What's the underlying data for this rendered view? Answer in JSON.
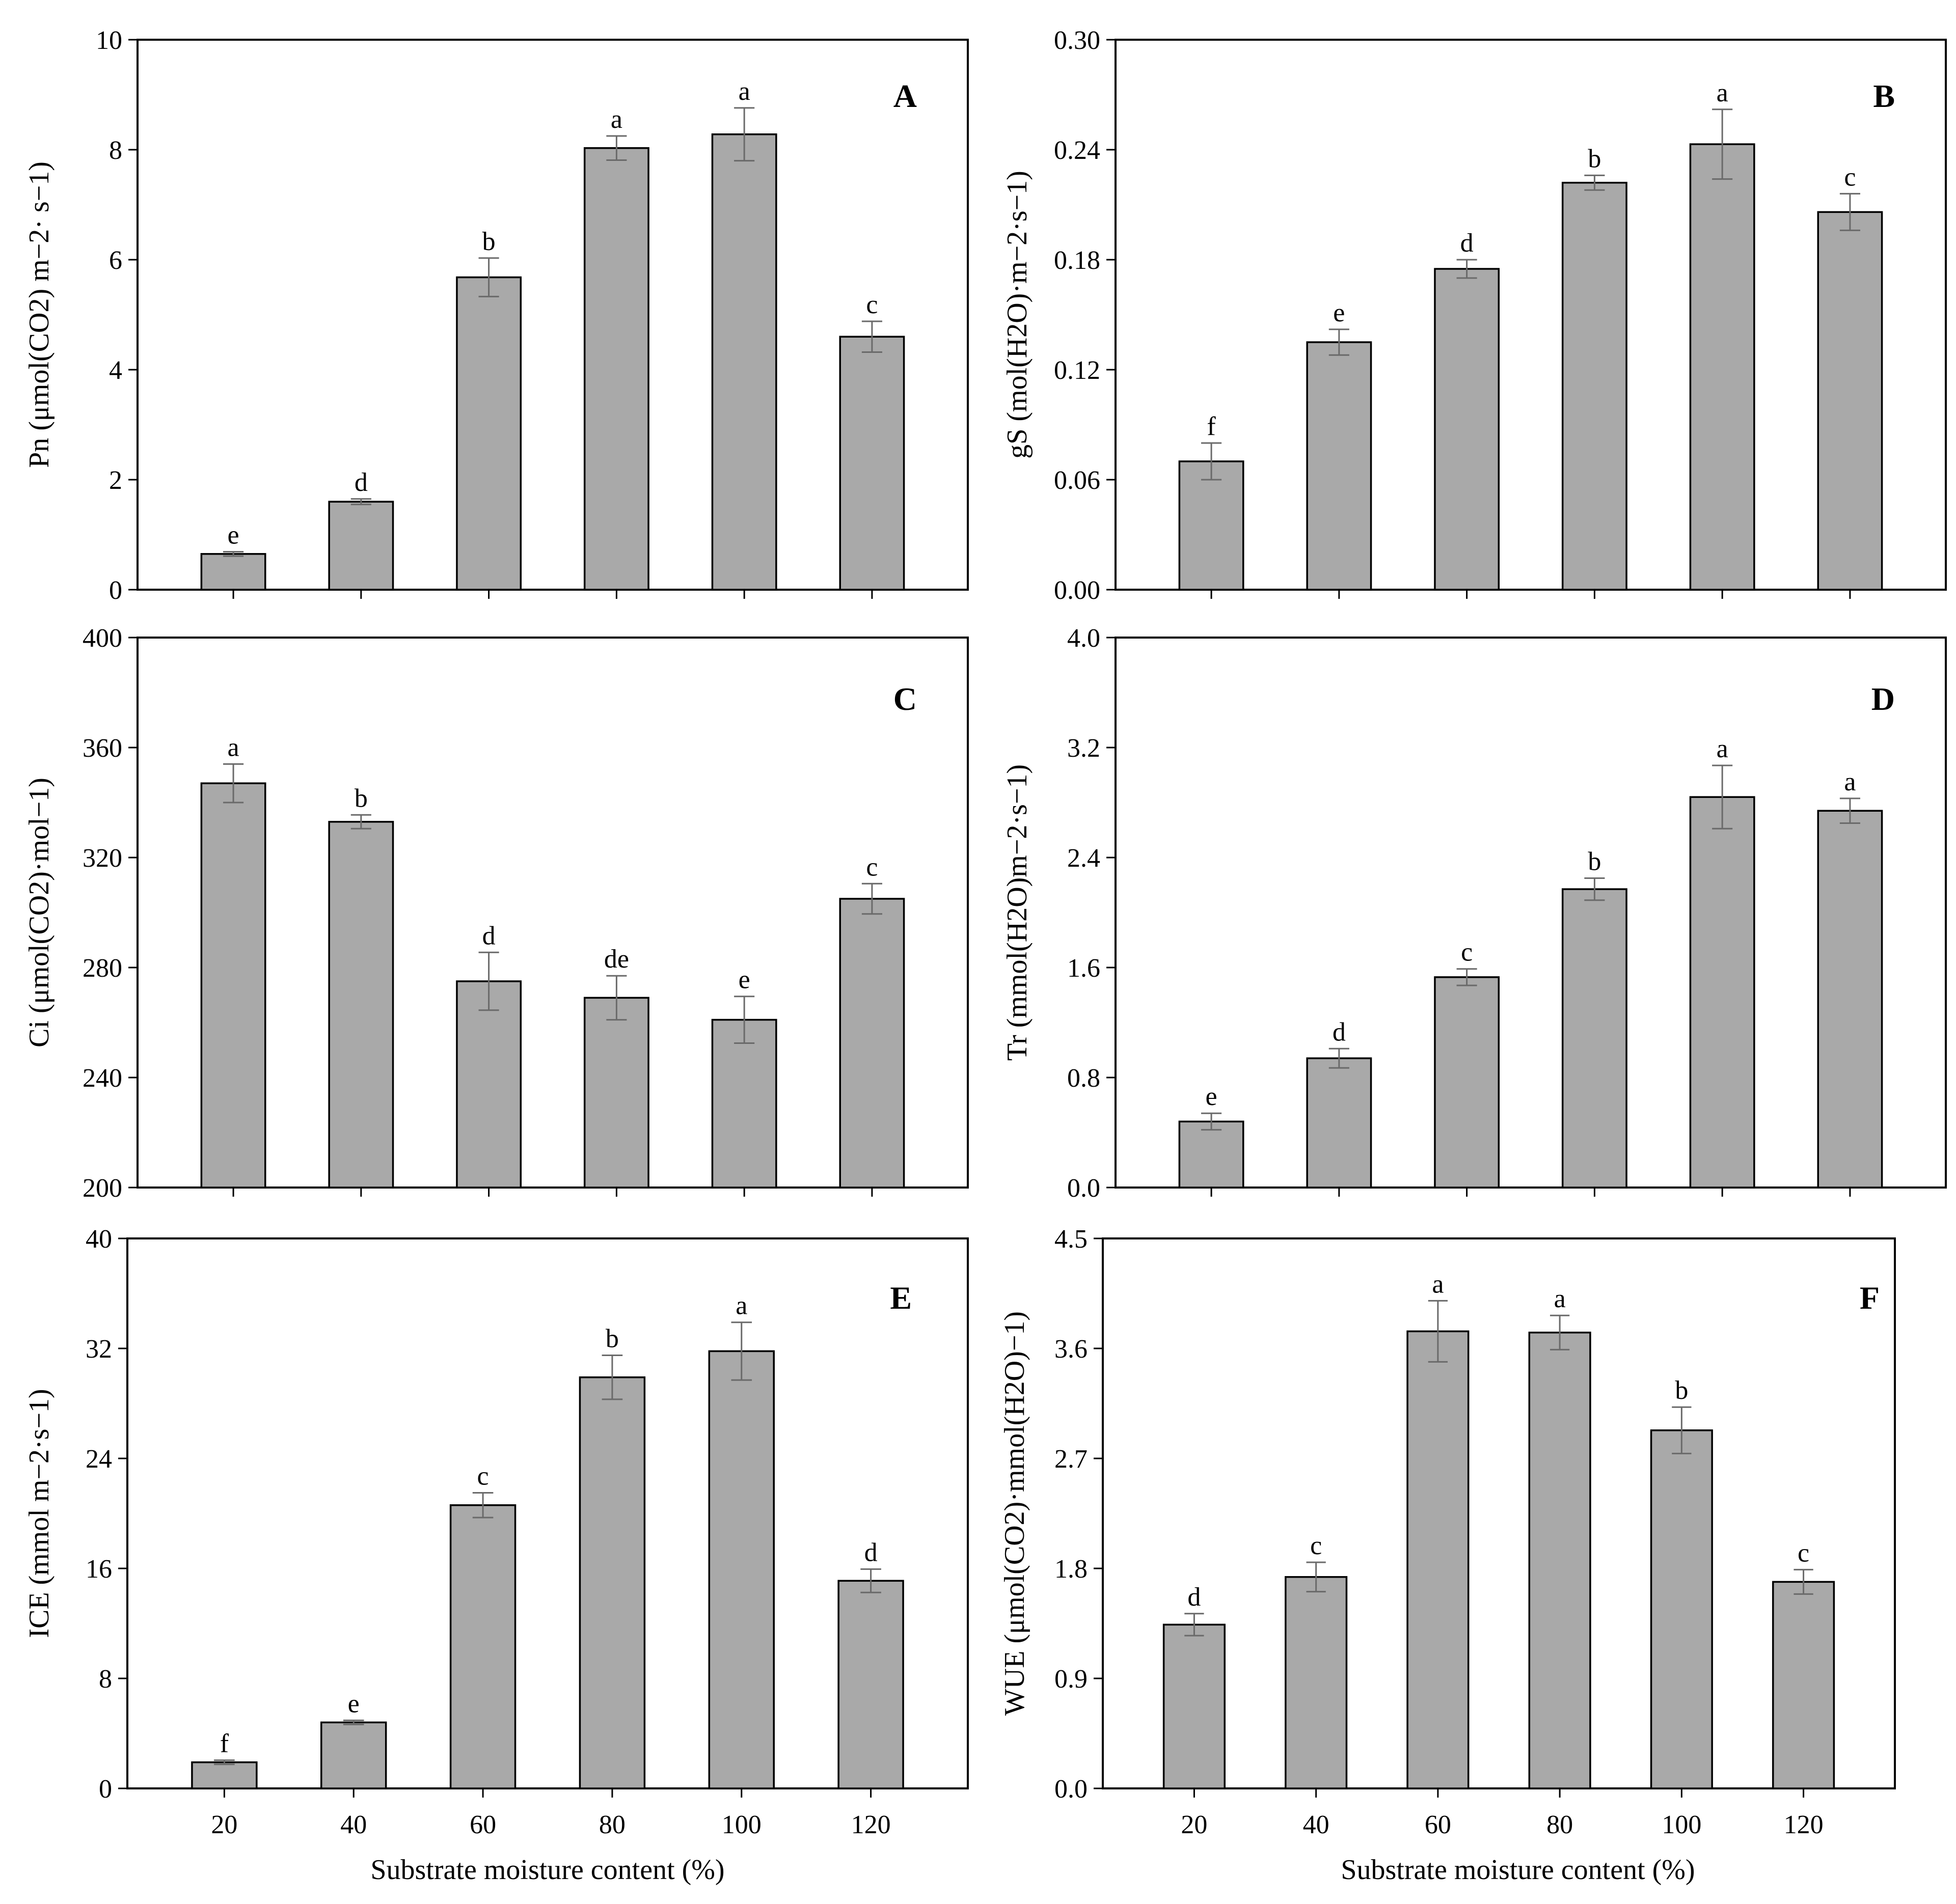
{
  "figure": {
    "x_axis_title": "Substrate moisture content (%)",
    "bar_color": "#a9a9a9",
    "error_bar_color": "#6a6a6a"
  },
  "chart_data": [
    {
      "type": "bar",
      "panel_label": "A",
      "categories": [
        "20",
        "40",
        "60",
        "80",
        "100",
        "120"
      ],
      "series": [
        {
          "name": "Pn",
          "values": [
            0.65,
            1.6,
            5.68,
            8.03,
            8.28,
            4.6
          ],
          "errors": [
            0.04,
            0.05,
            0.35,
            0.22,
            0.48,
            0.28
          ]
        }
      ],
      "significance": [
        "e",
        "d",
        "b",
        "a",
        "a",
        "c"
      ],
      "ylim": [
        0,
        10
      ],
      "yticks": [
        "0",
        "2",
        "4",
        "6",
        "8",
        "10"
      ],
      "ytick_values": [
        0,
        2,
        4,
        6,
        8,
        10
      ],
      "ylabel": "Pn (μmol(CO2) m−2· s−1)",
      "xlabel": "Substrate moisture content (%)",
      "title": ""
    },
    {
      "type": "bar",
      "panel_label": "B",
      "categories": [
        "20",
        "40",
        "60",
        "80",
        "100",
        "120"
      ],
      "series": [
        {
          "name": "gs",
          "values": [
            0.07,
            0.135,
            0.175,
            0.222,
            0.243,
            0.206
          ],
          "errors": [
            0.01,
            0.007,
            0.005,
            0.004,
            0.019,
            0.01
          ]
        }
      ],
      "significance": [
        "f",
        "e",
        "d",
        "b",
        "a",
        "c"
      ],
      "ylim": [
        0,
        0.3
      ],
      "yticks": [
        "0.00",
        "0.06",
        "0.12",
        "0.18",
        "0.24",
        "0.30"
      ],
      "ytick_values": [
        0,
        0.06,
        0.12,
        0.18,
        0.24,
        0.3
      ],
      "ylabel": "gS (mol(H2O)·m−2·s−1)",
      "xlabel": "Substrate moisture content (%)",
      "title": ""
    },
    {
      "type": "bar",
      "panel_label": "C",
      "categories": [
        "20",
        "40",
        "60",
        "80",
        "100",
        "120"
      ],
      "series": [
        {
          "name": "Ci",
          "values": [
            347,
            333,
            275,
            269,
            261,
            305
          ],
          "errors": [
            7,
            2.5,
            10.5,
            8,
            8.5,
            5.5
          ]
        }
      ],
      "significance": [
        "a",
        "b",
        "d",
        "de",
        "e",
        "c"
      ],
      "ylim": [
        200,
        400
      ],
      "yticks": [
        "200",
        "240",
        "280",
        "320",
        "360",
        "400"
      ],
      "ytick_values": [
        200,
        240,
        280,
        320,
        360,
        400
      ],
      "ylabel": "Ci (μmol(CO2)·mol−1)",
      "xlabel": "Substrate moisture content (%)",
      "title": ""
    },
    {
      "type": "bar",
      "panel_label": "D",
      "categories": [
        "20",
        "40",
        "60",
        "80",
        "100",
        "120"
      ],
      "series": [
        {
          "name": "Tr",
          "values": [
            0.48,
            0.94,
            1.53,
            2.17,
            2.84,
            2.74
          ],
          "errors": [
            0.06,
            0.07,
            0.06,
            0.08,
            0.23,
            0.09
          ]
        }
      ],
      "significance": [
        "e",
        "d",
        "c",
        "b",
        "a",
        "a"
      ],
      "ylim": [
        0,
        4.0
      ],
      "yticks": [
        "0.0",
        "0.8",
        "1.6",
        "2.4",
        "3.2",
        "4.0"
      ],
      "ytick_values": [
        0,
        0.8,
        1.6,
        2.4,
        3.2,
        4.0
      ],
      "ylabel": "Tr (mmol(H2O)m−2·s−1)",
      "xlabel": "Substrate moisture content (%)",
      "title": ""
    },
    {
      "type": "bar",
      "panel_label": "E",
      "categories": [
        "20",
        "40",
        "60",
        "80",
        "100",
        "120"
      ],
      "series": [
        {
          "name": "ICE",
          "values": [
            1.9,
            4.8,
            20.6,
            29.9,
            31.8,
            15.1
          ],
          "errors": [
            0.15,
            0.15,
            0.9,
            1.6,
            2.1,
            0.85
          ]
        }
      ],
      "significance": [
        "f",
        "e",
        "c",
        "b",
        "a",
        "d"
      ],
      "ylim": [
        0,
        40
      ],
      "yticks": [
        "0",
        "8",
        "16",
        "24",
        "32",
        "40"
      ],
      "ytick_values": [
        0,
        8,
        16,
        24,
        32,
        40
      ],
      "ylabel": "ICE (mmol m−2·s−1)",
      "xlabel": "Substrate moisture content (%)",
      "title": ""
    },
    {
      "type": "bar",
      "panel_label": "F",
      "categories": [
        "20",
        "40",
        "60",
        "80",
        "100",
        "120"
      ],
      "series": [
        {
          "name": "WUE",
          "values": [
            1.34,
            1.73,
            3.74,
            3.73,
            2.93,
            1.69
          ],
          "errors": [
            0.09,
            0.12,
            0.25,
            0.14,
            0.19,
            0.1
          ]
        }
      ],
      "significance": [
        "d",
        "c",
        "a",
        "a",
        "b",
        "c"
      ],
      "ylim": [
        0,
        4.5
      ],
      "yticks": [
        "0.0",
        "0.9",
        "1.8",
        "2.7",
        "3.6",
        "4.5"
      ],
      "ytick_values": [
        0,
        0.9,
        1.8,
        2.7,
        3.6,
        4.5
      ],
      "ylabel": "WUE (μmol(CO2)·mmol(H2O)−1)",
      "xlabel": "Substrate moisture content (%)",
      "title": ""
    }
  ]
}
